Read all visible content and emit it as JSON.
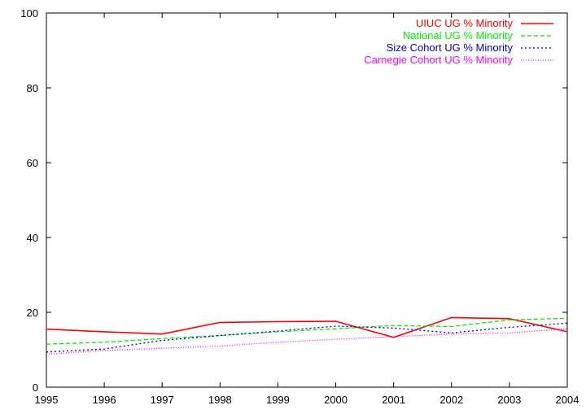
{
  "chart_data": {
    "type": "line",
    "title": "",
    "xlabel": "",
    "ylabel": "",
    "x": [
      1995,
      1996,
      1997,
      1998,
      1999,
      2000,
      2001,
      2002,
      2003,
      2004
    ],
    "xlim": [
      1995,
      2004
    ],
    "ylim": [
      0,
      100
    ],
    "xticks": [
      "1995",
      "1996",
      "1997",
      "1998",
      "1999",
      "2000",
      "2001",
      "2002",
      "2003",
      "2004"
    ],
    "yticks": [
      "0",
      "20",
      "40",
      "60",
      "80",
      "100"
    ],
    "grid": false,
    "legend_position": "top-right",
    "series": [
      {
        "name": "UIUC UG % Minority",
        "color": "#ff0000",
        "style": "solid",
        "values": [
          15.5,
          14.8,
          14.2,
          17.3,
          17.5,
          17.6,
          13.3,
          18.6,
          18.3,
          14.8
        ]
      },
      {
        "name": "National UG % Minority",
        "color": "#00ee00",
        "style": "dashed",
        "values": [
          11.5,
          12.0,
          13.0,
          13.8,
          14.8,
          15.6,
          16.5,
          16.2,
          18.0,
          18.4
        ]
      },
      {
        "name": "Size Cohort UG % Minority",
        "color": "#0000cc",
        "style": "dotted",
        "values": [
          9.4,
          10.2,
          12.5,
          13.8,
          15.0,
          16.3,
          15.8,
          14.5,
          16.0,
          17.1
        ]
      },
      {
        "name": "Carnegie Cohort UG % Minority",
        "color": "#ff00ff",
        "style": "fine-dotted",
        "values": [
          8.8,
          9.8,
          10.4,
          11.0,
          12.0,
          12.8,
          13.5,
          14.2,
          14.5,
          15.6
        ]
      }
    ]
  }
}
